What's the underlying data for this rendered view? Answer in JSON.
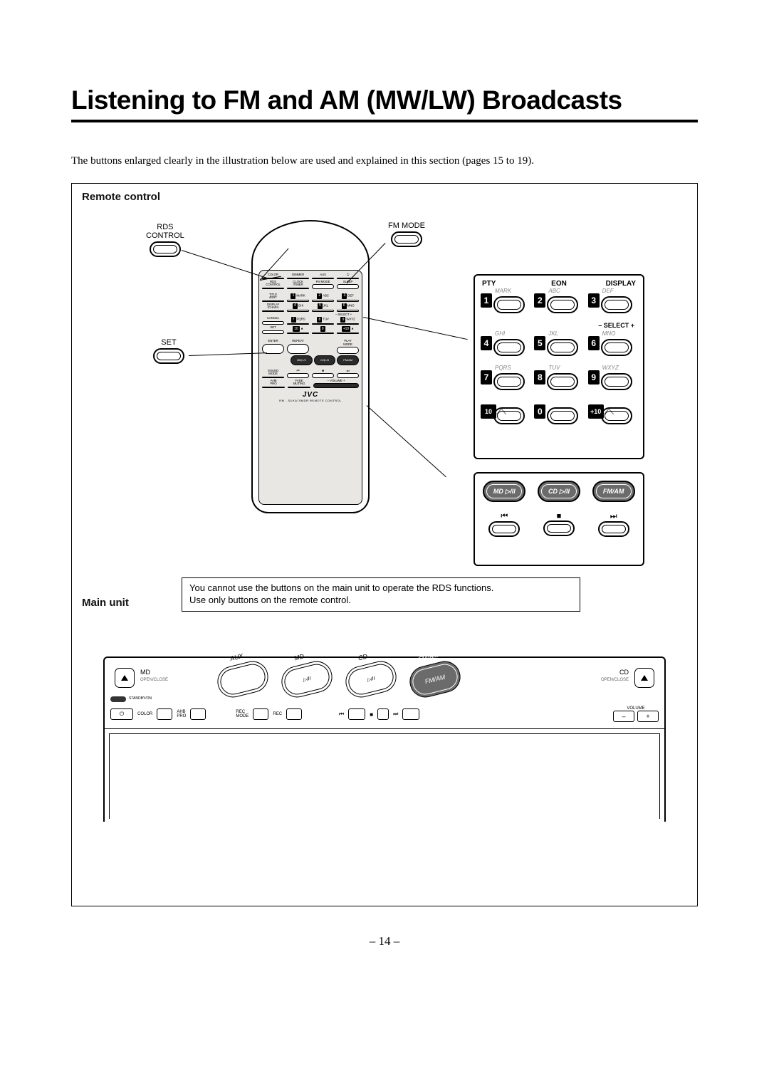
{
  "title": "Listening to FM and AM (MW/LW) Broadcasts",
  "intro": "The buttons enlarged clearly in the illustration below are used and explained in this section (pages 15 to 19).",
  "section_remote": "Remote control",
  "section_main": "Main unit",
  "note_line1": "You cannot use the buttons on the main unit to operate the RDS functions.",
  "note_line2": "Use only buttons on the remote control.",
  "callouts": {
    "rds": "RDS\nCONTROL",
    "fmmode": "FM MODE",
    "set": "SET"
  },
  "keypad_head": {
    "pty": "PTY",
    "eon": "EON",
    "display": "DISPLAY",
    "select": "– SELECT +"
  },
  "keypad_rows": [
    [
      {
        "n": "1",
        "t": "MARK"
      },
      {
        "n": "2",
        "t": "ABC"
      },
      {
        "n": "3",
        "t": "DEF"
      }
    ],
    [
      {
        "n": "4",
        "t": "GHI"
      },
      {
        "n": "5",
        "t": "JKL"
      },
      {
        "n": "6",
        "t": "MNO"
      }
    ],
    [
      {
        "n": "7",
        "t": "PQRS"
      },
      {
        "n": "8",
        "t": "TUV"
      },
      {
        "n": "9",
        "t": "WXYZ"
      }
    ],
    [
      {
        "n": "10",
        "t": ""
      },
      {
        "n": "0",
        "t": ""
      },
      {
        "n": "+10",
        "t": ""
      }
    ]
  ],
  "src_box": {
    "row1": [
      "MD ▷/II",
      "CD ▷/II",
      "FM/AM"
    ],
    "row2": [
      "⏮",
      "■",
      "⏭"
    ]
  },
  "remote_rows": {
    "r1": [
      "COLOR",
      "DIMMER",
      "AUX",
      "⏻"
    ],
    "r2": [
      "RDS\nCONTROL",
      "CLOCK\n/TIMER",
      "FM MODE",
      "SLEEP"
    ],
    "r3": [
      "TITLE\n/EDIT",
      "PTY",
      "EON",
      "DISPLAY"
    ],
    "r4": [
      "DISPLAY\n/CHARA",
      "",
      "– SELECT +",
      ""
    ],
    "r5": [
      "CANCEL",
      "",
      "",
      ""
    ],
    "r6": [
      "SET",
      "",
      "",
      ""
    ],
    "r7": [
      "ENTER",
      "REPEAT",
      "",
      "PLAY\nMODE"
    ],
    "r8_src": [
      "MD▷/II",
      "CD▷/II",
      "FM/AM"
    ],
    "r9": [
      "SOUND\nMODE",
      "⏮",
      "■",
      "⏭"
    ],
    "r10": [
      "AHB\nPRO",
      "FADE\nMUTING",
      "– VOLUME +",
      ""
    ]
  },
  "brand": "JVC",
  "model": "RM - SUXA70MDR  REMOTE  CONTROL",
  "main_unit": {
    "md": "MD",
    "md_sub": "OPEN/CLOSE",
    "cd": "CD",
    "cd_sub": "OPEN/CLOSE",
    "volume": "VOLUME",
    "src_labels": [
      "AUX",
      "MD",
      "CD",
      "FM/AM"
    ],
    "bottom": [
      "COLOR",
      "AHB\nPRO",
      "REC\nMODE",
      "REC"
    ],
    "standby": "STANDBY/ON"
  },
  "page_number": "– 14 –"
}
